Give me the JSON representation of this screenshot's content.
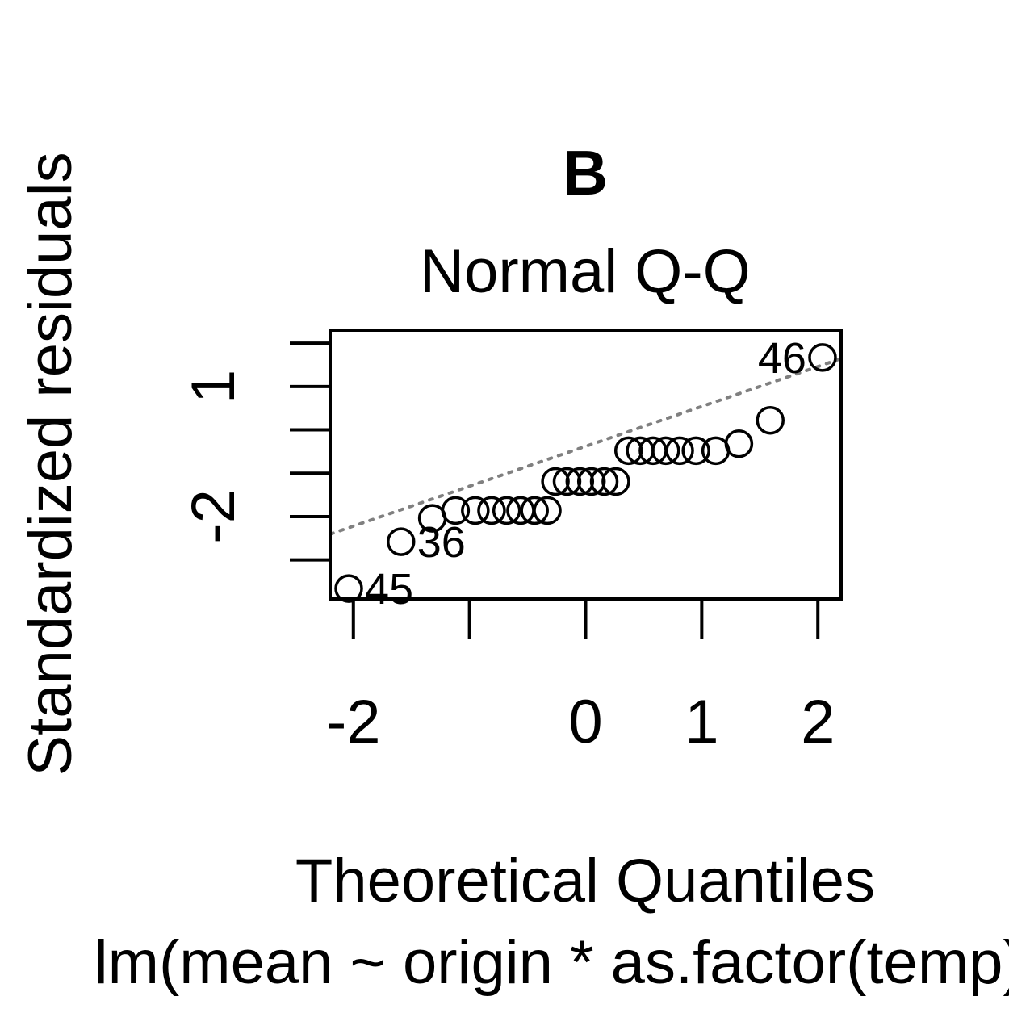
{
  "panel_label": "B",
  "chart_data": {
    "type": "scatter",
    "title": "Normal Q-Q",
    "xlabel": "Theoretical Quantiles",
    "ylabel": "Standardized residuals",
    "caption": "lm(mean ~ origin * as.factor(temp) + ",
    "xlim": [
      -2.2,
      2.2
    ],
    "ylim": [
      -3.9,
      2.3
    ],
    "x_ticks": [
      -2,
      -1,
      0,
      1,
      2
    ],
    "x_tick_labels": [
      "-2",
      "",
      "0",
      "1",
      "2"
    ],
    "y_ticks": [
      -3,
      -2,
      -1,
      0,
      1,
      2
    ],
    "y_tick_labels": [
      "",
      "-2",
      "",
      "",
      "1",
      ""
    ],
    "grid": false,
    "reference_line": {
      "style": "dotted",
      "color": "#808080",
      "slope": 0.92,
      "intercept": -0.38
    },
    "points": [
      {
        "x": -2.04,
        "y": -3.66,
        "label": "45"
      },
      {
        "x": -1.59,
        "y": -2.58,
        "label": "36"
      },
      {
        "x": -1.32,
        "y": -2.04
      },
      {
        "x": -1.12,
        "y": -1.86
      },
      {
        "x": -0.95,
        "y": -1.86
      },
      {
        "x": -0.81,
        "y": -1.86
      },
      {
        "x": -0.68,
        "y": -1.86
      },
      {
        "x": -0.56,
        "y": -1.86
      },
      {
        "x": -0.44,
        "y": -1.86
      },
      {
        "x": -0.33,
        "y": -1.86
      },
      {
        "x": -0.26,
        "y": -1.19
      },
      {
        "x": -0.16,
        "y": -1.19
      },
      {
        "x": -0.05,
        "y": -1.19
      },
      {
        "x": 0.05,
        "y": -1.19
      },
      {
        "x": 0.16,
        "y": -1.19
      },
      {
        "x": 0.26,
        "y": -1.19
      },
      {
        "x": 0.37,
        "y": -0.48
      },
      {
        "x": 0.47,
        "y": -0.48
      },
      {
        "x": 0.58,
        "y": -0.48
      },
      {
        "x": 0.69,
        "y": -0.48
      },
      {
        "x": 0.81,
        "y": -0.48
      },
      {
        "x": 0.95,
        "y": -0.48
      },
      {
        "x": 1.12,
        "y": -0.48
      },
      {
        "x": 1.32,
        "y": -0.32
      },
      {
        "x": 1.59,
        "y": 0.22
      },
      {
        "x": 2.04,
        "y": 1.67,
        "label": "46"
      }
    ]
  }
}
